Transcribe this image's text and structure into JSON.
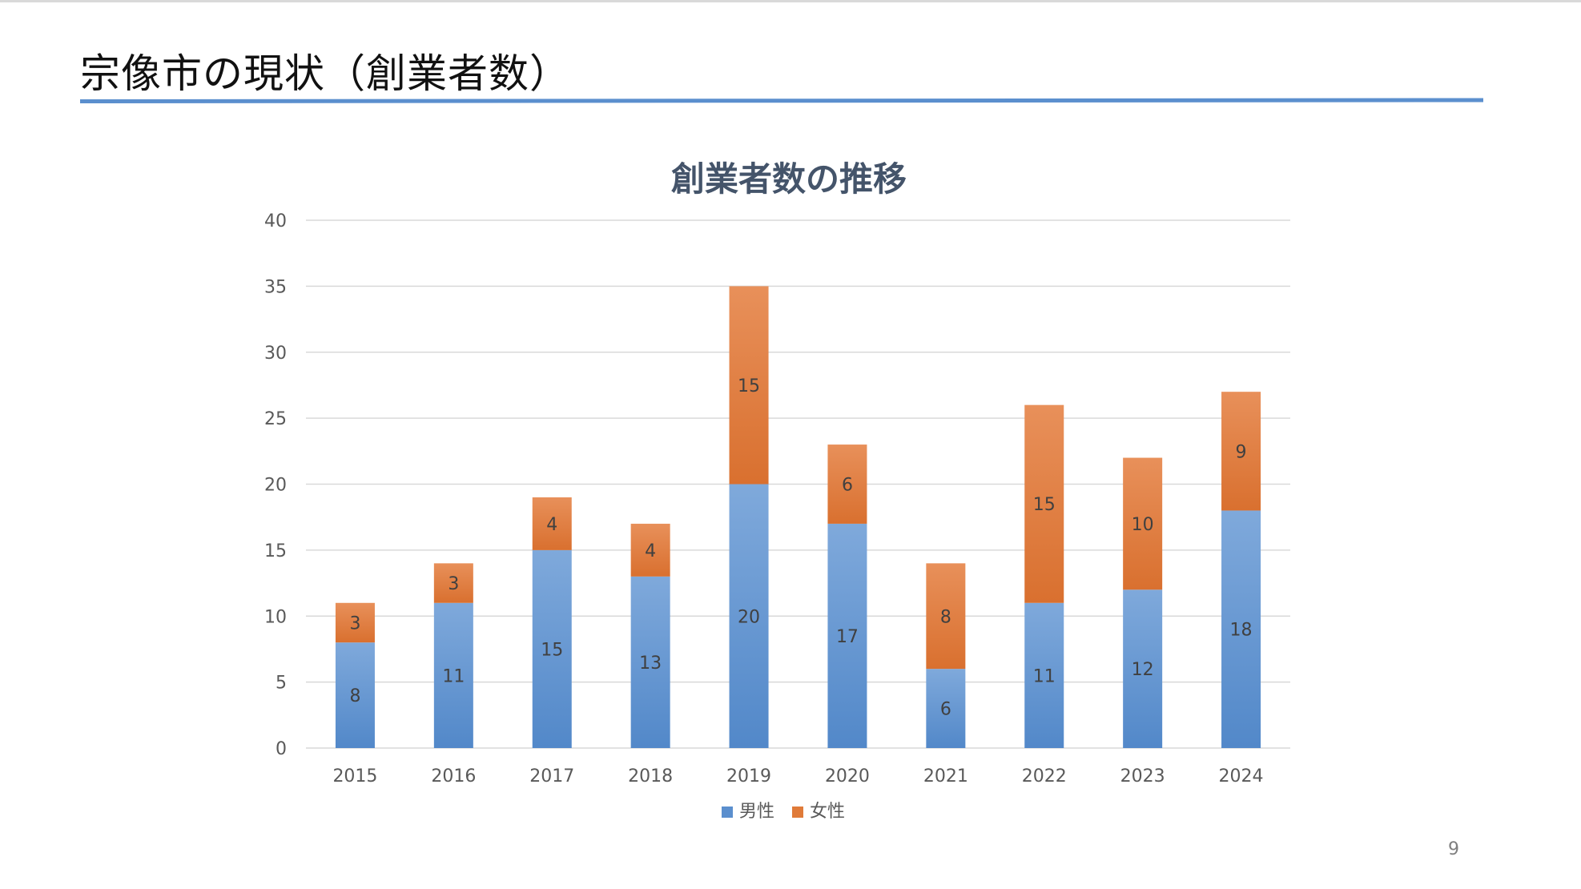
{
  "slide": {
    "title": "宗像市の現状（創業者数）",
    "page_number": "9"
  },
  "colors": {
    "accent_rule": "#5b8fce",
    "male": "#5b8fce",
    "female": "#e07b39"
  },
  "chart_data": {
    "type": "bar",
    "stacked": true,
    "title": "創業者数の推移",
    "xlabel": "",
    "ylabel": "",
    "categories": [
      "2015",
      "2016",
      "2017",
      "2018",
      "2019",
      "2020",
      "2021",
      "2022",
      "2023",
      "2024"
    ],
    "series": [
      {
        "name": "男性",
        "values": [
          8,
          11,
          15,
          13,
          20,
          17,
          6,
          11,
          12,
          18
        ]
      },
      {
        "name": "女性",
        "values": [
          3,
          3,
          4,
          4,
          15,
          6,
          8,
          15,
          10,
          9
        ]
      }
    ],
    "ylim": [
      0,
      40
    ],
    "yticks": [
      0,
      5,
      10,
      15,
      20,
      25,
      30,
      35,
      40
    ],
    "grid": true,
    "legend_position": "bottom",
    "data_labels": true
  }
}
